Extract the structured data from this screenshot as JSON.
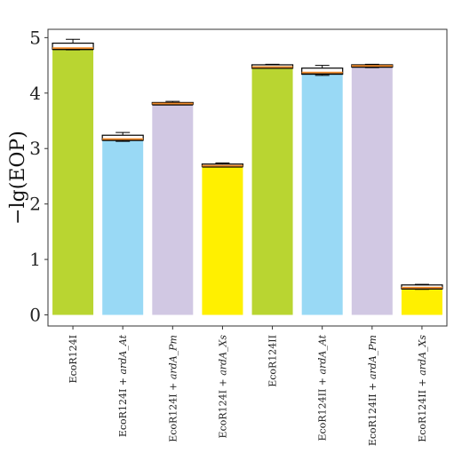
{
  "chart_data": {
    "type": "bar",
    "title": "",
    "xlabel": "",
    "ylabel": "−lg(EOP)",
    "ylim": [
      -0.2,
      5.15
    ],
    "yticks": [
      0,
      1,
      2,
      3,
      4,
      5
    ],
    "grid": false,
    "legend": "none",
    "categories": [
      {
        "base": "EcoR124I",
        "suffix": ""
      },
      {
        "base": "EcoR124I + ",
        "suffix": "ardA_At"
      },
      {
        "base": "EcoR124I + ",
        "suffix": "ardA_Pm"
      },
      {
        "base": "EcoR124I + ",
        "suffix": "ardA_Xs"
      },
      {
        "base": "EcoR124II",
        "suffix": ""
      },
      {
        "base": "EcoR124II + ",
        "suffix": "ardA_At"
      },
      {
        "base": "EcoR124II + ",
        "suffix": "ardA_Pm"
      },
      {
        "base": "EcoR124II + ",
        "suffix": "ardA_Xs"
      }
    ],
    "values": [
      4.81,
      3.17,
      3.81,
      2.69,
      4.47,
      4.37,
      4.49,
      0.49
    ],
    "box_low": [
      4.79,
      3.15,
      3.8,
      2.68,
      4.45,
      4.34,
      4.47,
      0.47
    ],
    "box_high": [
      4.9,
      3.24,
      3.83,
      2.72,
      4.51,
      4.45,
      4.51,
      0.54
    ],
    "whisker_low": [
      4.78,
      3.13,
      3.8,
      2.67,
      4.45,
      4.32,
      4.46,
      0.46
    ],
    "whisker_high": [
      4.97,
      3.29,
      3.85,
      2.74,
      4.52,
      4.5,
      4.52,
      0.55
    ],
    "colors": [
      "#b9d531",
      "#99d9f5",
      "#d1c8e3",
      "#fff000",
      "#b9d531",
      "#99d9f5",
      "#d1c8e3",
      "#fff000"
    ],
    "median_color": "#f08c2c"
  }
}
